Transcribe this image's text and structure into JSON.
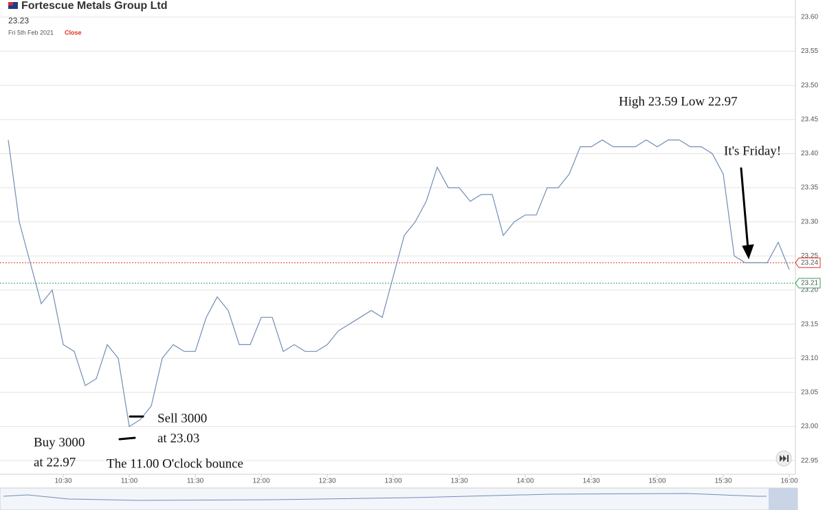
{
  "chart_data": {
    "type": "line",
    "title": "Fortescue Metals Group Ltd",
    "price": "23.23",
    "date": "Fri 5th Feb 2021",
    "status": "Close",
    "x": [
      "10:05",
      "10:10",
      "10:15",
      "10:20",
      "10:25",
      "10:30",
      "10:35",
      "10:40",
      "10:45",
      "10:50",
      "10:55",
      "11:00",
      "11:05",
      "11:10",
      "11:15",
      "11:20",
      "11:25",
      "11:30",
      "11:35",
      "11:40",
      "11:45",
      "11:50",
      "11:55",
      "12:00",
      "12:05",
      "12:10",
      "12:15",
      "12:20",
      "12:25",
      "12:30",
      "12:35",
      "12:40",
      "12:45",
      "12:50",
      "12:55",
      "13:00",
      "13:05",
      "13:10",
      "13:15",
      "13:20",
      "13:25",
      "13:30",
      "13:35",
      "13:40",
      "13:45",
      "13:50",
      "13:55",
      "14:00",
      "14:05",
      "14:10",
      "14:15",
      "14:20",
      "14:25",
      "14:30",
      "14:35",
      "14:40",
      "14:45",
      "14:50",
      "14:55",
      "15:00",
      "15:05",
      "15:10",
      "15:15",
      "15:20",
      "15:25",
      "15:30",
      "15:35",
      "15:40",
      "15:45",
      "15:50",
      "15:55",
      "16:00"
    ],
    "series": [
      {
        "color": "#6f8db5",
        "values": [
          23.42,
          23.3,
          23.24,
          23.18,
          23.2,
          23.12,
          23.11,
          23.06,
          23.07,
          23.12,
          23.1,
          23.0,
          23.01,
          23.03,
          23.1,
          23.12,
          23.11,
          23.11,
          23.16,
          23.19,
          23.17,
          23.12,
          23.12,
          23.16,
          23.16,
          23.11,
          23.12,
          23.11,
          23.11,
          23.12,
          23.14,
          23.15,
          23.16,
          23.17,
          23.16,
          23.22,
          23.28,
          23.3,
          23.33,
          23.38,
          23.35,
          23.35,
          23.33,
          23.34,
          23.34,
          23.28,
          23.3,
          23.31,
          23.31,
          23.35,
          23.35,
          23.37,
          23.41,
          23.41,
          23.42,
          23.41,
          23.41,
          23.41,
          23.42,
          23.41,
          23.42,
          23.42,
          23.41,
          23.41,
          23.4,
          23.37,
          23.25,
          23.24,
          23.24,
          23.24,
          23.27,
          23.23
        ]
      }
    ],
    "ylim": [
      22.93,
      23.61
    ],
    "yticks": [
      22.95,
      {
        "value": 23,
        "label": "23.00"
      },
      23.05,
      {
        "value": 23.1,
        "label": "23.10"
      },
      23.15,
      {
        "value": 23.2,
        "label": "23.20"
      },
      23.25,
      {
        "value": 23.3,
        "label": "23.30"
      },
      23.35,
      {
        "value": 23.4,
        "label": "23.40"
      },
      23.45,
      {
        "value": 23.5,
        "label": "23.50"
      },
      23.55,
      {
        "value": 23.6,
        "label": "23.60"
      }
    ],
    "xticks": [
      "10:30",
      "11:00",
      "11:30",
      "12:00",
      "12:30",
      "13:00",
      "13:30",
      "14:00",
      "14:30",
      "15:00",
      "15:30",
      "16:00"
    ],
    "grid": true,
    "reference_lines": [
      {
        "value": 23.24,
        "color": "#e0301e"
      },
      {
        "value": 23.21,
        "color": "#2e9e5b"
      }
    ],
    "annotations": [
      "Sell 3000",
      "at 23.03",
      "Buy 3000",
      "at 22.97",
      "The 11.00 O'clock bounce",
      "High 23.59  Low 22.97",
      "It's Friday!"
    ]
  }
}
